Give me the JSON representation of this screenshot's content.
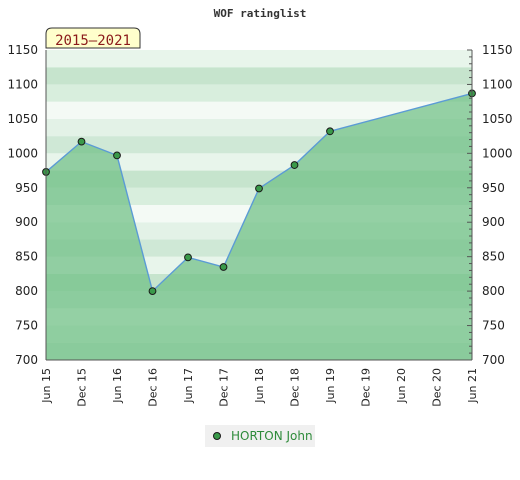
{
  "chart_data": {
    "type": "area",
    "title": "WOF ratinglist",
    "period_badge": "2015–2021",
    "categories": [
      "Jun 15",
      "Dec 15",
      "Jun 16",
      "Dec 16",
      "Jun 17",
      "Dec 17",
      "Jun 18",
      "Dec 18",
      "Jun 19",
      "Dec 19",
      "Jun 20",
      "Dec 20",
      "Jun 21"
    ],
    "series": [
      {
        "name": "HORTON John",
        "points": [
          {
            "x": "Jun 15",
            "y": 973
          },
          {
            "x": "Dec 15",
            "y": 1017
          },
          {
            "x": "Jun 16",
            "y": 997
          },
          {
            "x": "Dec 16",
            "y": 800
          },
          {
            "x": "Jun 17",
            "y": 849
          },
          {
            "x": "Dec 17",
            "y": 835
          },
          {
            "x": "Jun 18",
            "y": 949
          },
          {
            "x": "Dec 18",
            "y": 983
          },
          {
            "x": "Jun 19",
            "y": 1032
          },
          {
            "x": "Jun 21",
            "y": 1087
          }
        ]
      }
    ],
    "y_ticks": [
      "700",
      "750",
      "800",
      "850",
      "900",
      "950",
      "1000",
      "1050",
      "1100",
      "1150"
    ],
    "ylim": [
      700,
      1150
    ],
    "xlabel": "",
    "ylabel": "",
    "legend_position": "bottom",
    "grid": "horizontal bands",
    "colors": {
      "area_fill": "#6fbf85",
      "line": "#5b9bd5",
      "marker": "#3a9a4a",
      "legend_text": "#2e8b3a",
      "badge_fill": "#ffffcc",
      "badge_text": "#8b1a1a"
    }
  }
}
